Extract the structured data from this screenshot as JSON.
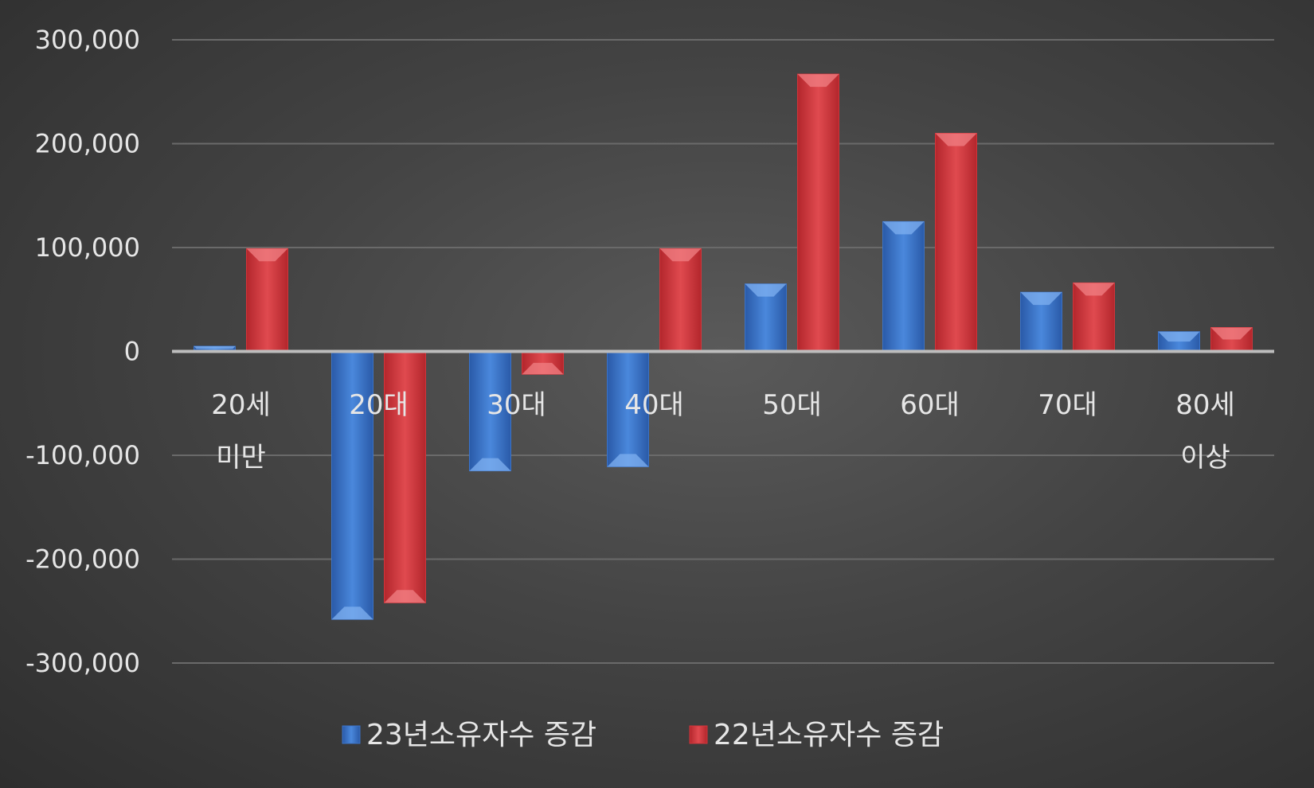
{
  "chart_data": {
    "type": "bar",
    "categories": [
      [
        "20세",
        "미만"
      ],
      [
        "20대"
      ],
      [
        "30대"
      ],
      [
        "40대"
      ],
      [
        "50대"
      ],
      [
        "60대"
      ],
      [
        "70대"
      ],
      [
        "80세",
        "이상"
      ]
    ],
    "series": [
      {
        "name": "23년소유자수 증감",
        "color": "#3b73c8",
        "values": [
          5000,
          -258000,
          -115000,
          -111000,
          65000,
          125000,
          57000,
          19000
        ]
      },
      {
        "name": "22년소유자수 증감",
        "color": "#d2343a",
        "values": [
          99000,
          -242000,
          -22000,
          99000,
          267000,
          210000,
          66000,
          23000
        ]
      }
    ],
    "ylim": [
      -300000,
      300000
    ],
    "yticks": [
      300000,
      200000,
      100000,
      0,
      -100000,
      -200000,
      -300000
    ],
    "ytick_labels": [
      "300,000",
      "200,000",
      "100,000",
      "0",
      "-100,000",
      "-200,000",
      "-300,000"
    ],
    "grid": true,
    "legend_position": "bottom"
  }
}
